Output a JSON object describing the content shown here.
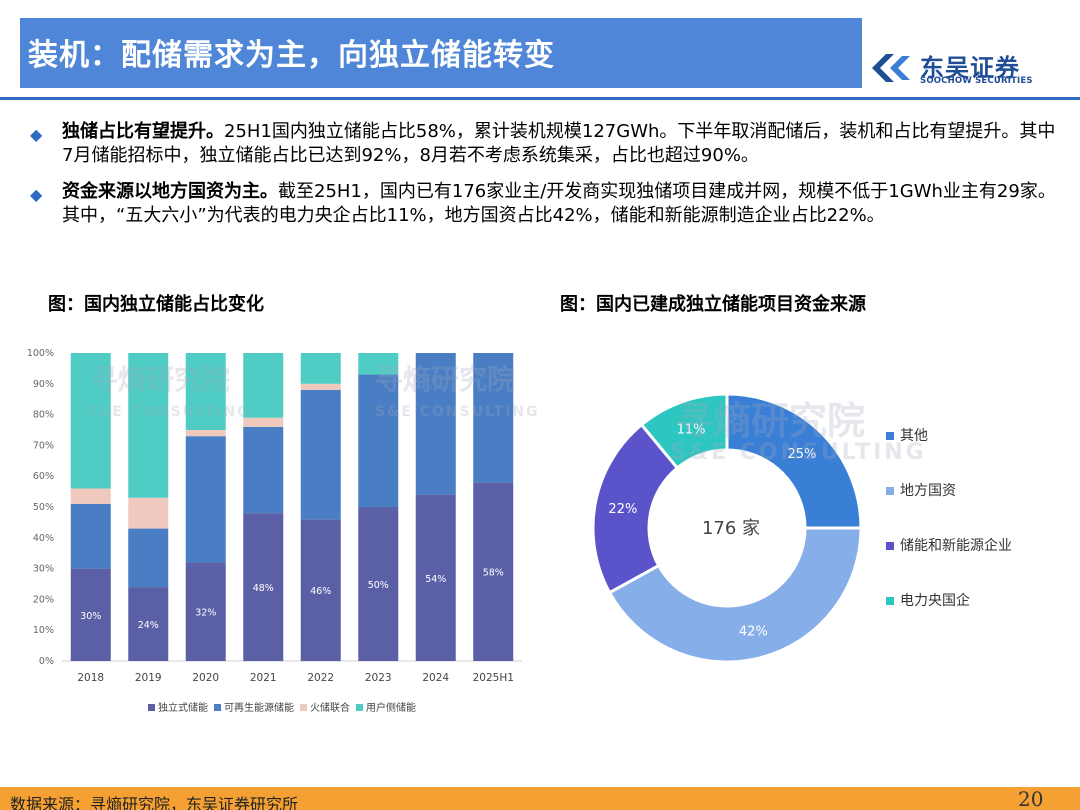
{
  "header": {
    "title": "装机：配储需求为主，向独立储能转变",
    "logo_cn": "东吴证券",
    "logo_en": "SOOCHOW SECURITIES",
    "accent_color": "#4f86d8"
  },
  "bullets": [
    {
      "bold": "独储占比有望提升。",
      "text": "25H1国内独立储能占比58%，累计装机规模127GWh。下半年取消配储后，装机和占比有望提升。其中7月储能招标中，独立储能占比已达到92%，8月若不考虑系统集采，占比也超过90%。"
    },
    {
      "bold": "资金来源以地方国资为主。",
      "text": "截至25H1，国内已有176家业主/开发商实现独储项目建成并网，规模不低于1GWh业主有29家。其中，“五大六小”为代表的电力央企占比11%，地方国资占比42%，储能和新能源制造企业占比22%。"
    }
  ],
  "figures": {
    "left_title": "图：国内独立储能占比变化",
    "right_title": "图：国内已建成独立储能项目资金来源",
    "watermark_cn": "寻熵研究院",
    "watermark_en": "S&E CONSULTING"
  },
  "chart_data": [
    {
      "type": "bar",
      "stacked": true,
      "categories": [
        "2018",
        "2019",
        "2020",
        "2021",
        "2022",
        "2023",
        "2024",
        "2025H1"
      ],
      "series": [
        {
          "name": "独立式储能",
          "color": "#5b5fa6",
          "values": [
            30,
            24,
            32,
            48,
            46,
            50,
            54,
            58
          ],
          "labels": [
            "30%",
            "24%",
            "32%",
            "48%",
            "46%",
            "50%",
            "54%",
            "58%"
          ]
        },
        {
          "name": "可再生能源储能",
          "color": "#4a7ec4",
          "values": [
            21,
            19,
            41,
            28,
            42,
            43,
            46,
            42
          ]
        },
        {
          "name": "火储联合",
          "color": "#efc9bd",
          "values": [
            5,
            10,
            2,
            3,
            2,
            0,
            0,
            0
          ]
        },
        {
          "name": "用户侧储能",
          "color": "#4fcdc5",
          "values": [
            44,
            47,
            25,
            21,
            10,
            7,
            0,
            0
          ]
        }
      ],
      "ylim": [
        0,
        100
      ],
      "yticks": [
        "0%",
        "10%",
        "20%",
        "30%",
        "40%",
        "50%",
        "60%",
        "70%",
        "80%",
        "90%",
        "100%"
      ],
      "legend_position": "bottom",
      "grid": false
    },
    {
      "type": "pie",
      "donut": true,
      "center_label": "176 家",
      "slices": [
        {
          "name": "其他",
          "value": 25,
          "label": "25%",
          "color": "#3a7fd6"
        },
        {
          "name": "地方国资",
          "value": 42,
          "label": "42%",
          "color": "#86aee9"
        },
        {
          "name": "储能和新能源企业",
          "value": 22,
          "label": "22%",
          "color": "#5b53c9"
        },
        {
          "name": "电力央国企",
          "value": 11,
          "label": "11%",
          "color": "#2ec6c0"
        }
      ],
      "legend_position": "right"
    }
  ],
  "footer": {
    "source": "数据来源：寻熵研究院，东吴证券研究所",
    "page": "20"
  }
}
